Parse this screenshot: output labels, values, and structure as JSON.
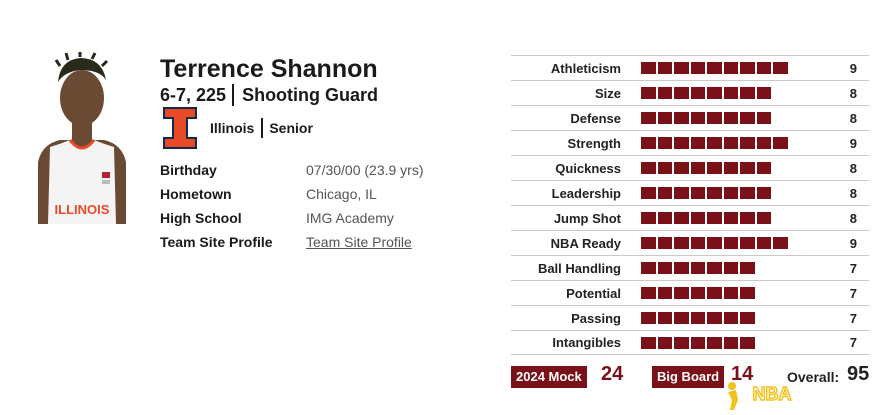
{
  "player": {
    "name": "Terrence Shannon",
    "measurements": "6-7, 225",
    "position": "Shooting Guard",
    "school": "Illinois",
    "class": "Senior",
    "jersey_text": "ILLINOIS"
  },
  "info": [
    {
      "label": "Birthday",
      "value": "07/30/00 (23.9 yrs)"
    },
    {
      "label": "Hometown",
      "value": "Chicago, IL"
    },
    {
      "label": "High School",
      "value": "IMG Academy"
    },
    {
      "label": "Team Site Profile",
      "value": "Team Site Profile"
    }
  ],
  "ratings": [
    {
      "label": "Athleticism",
      "value": 9
    },
    {
      "label": "Size",
      "value": 8
    },
    {
      "label": "Defense",
      "value": 8
    },
    {
      "label": "Strength",
      "value": 9
    },
    {
      "label": "Quickness",
      "value": 8
    },
    {
      "label": "Leadership",
      "value": 8
    },
    {
      "label": "Jump Shot",
      "value": 8
    },
    {
      "label": "NBA Ready",
      "value": 9
    },
    {
      "label": "Ball Handling",
      "value": 7
    },
    {
      "label": "Potential",
      "value": 7
    },
    {
      "label": "Passing",
      "value": 7
    },
    {
      "label": "Intangibles",
      "value": 7
    }
  ],
  "summary": {
    "mock_label": "2024 Mock",
    "mock_value": "24",
    "board_label": "Big Board",
    "board_value": "14",
    "overall_label": "Overall:",
    "overall_value": "95"
  },
  "watermark_text": "NBA",
  "colors": {
    "bar": "#7a1018",
    "illinois_orange": "#e84a27",
    "watermark": "#f2c21b"
  },
  "icons": [
    "illinois-logo-icon",
    "nba-watermark-icon"
  ]
}
